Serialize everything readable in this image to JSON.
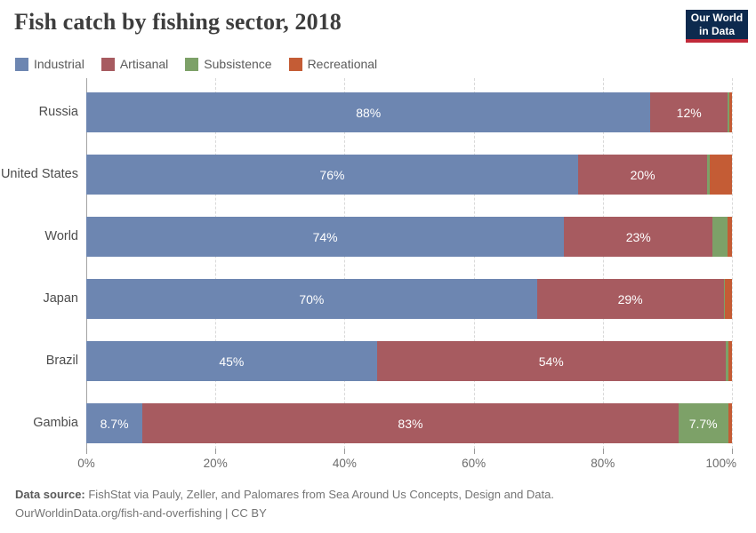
{
  "title": "Fish catch by fishing sector, 2018",
  "logo": {
    "line1": "Our World",
    "line2": "in Data",
    "bg_color": "#0d2a4e",
    "accent_color": "#c12a3a"
  },
  "legend": [
    {
      "label": "Industrial",
      "color": "#6d86b1"
    },
    {
      "label": "Artisanal",
      "color": "#a75b60"
    },
    {
      "label": "Subsistence",
      "color": "#7da168"
    },
    {
      "label": "Recreational",
      "color": "#c45c35"
    }
  ],
  "chart_data": {
    "type": "bar",
    "variant": "horizontal-stacked",
    "title": "Fish catch by fishing sector, 2018",
    "categories": [
      "Russia",
      "United States",
      "World",
      "Japan",
      "Brazil",
      "Gambia"
    ],
    "series": [
      {
        "name": "Industrial",
        "color": "#6d86b1",
        "values": [
          88,
          76,
          74,
          70,
          45,
          8.7
        ],
        "labels": [
          "88%",
          "76%",
          "74%",
          "70%",
          "45%",
          "8.7%"
        ]
      },
      {
        "name": "Artisanal",
        "color": "#a75b60",
        "values": [
          12,
          20,
          23,
          29,
          54,
          83
        ],
        "labels": [
          "12%",
          "20%",
          "23%",
          "29%",
          "54%",
          "83%"
        ]
      },
      {
        "name": "Subsistence",
        "color": "#7da168",
        "values": [
          0.3,
          0.3,
          2.3,
          0.2,
          0.4,
          7.7
        ],
        "labels": [
          "",
          "",
          "",
          "",
          "",
          "7.7%"
        ]
      },
      {
        "name": "Recreational",
        "color": "#c45c35",
        "values": [
          0.4,
          3.5,
          0.7,
          1.1,
          0.6,
          0.6
        ],
        "labels": [
          "",
          "",
          "",
          "",
          "",
          ""
        ]
      }
    ],
    "xticks": [
      "0%",
      "20%",
      "40%",
      "60%",
      "80%",
      "100%"
    ],
    "xlim": [
      0,
      100
    ],
    "grid": "vertical-dashed",
    "legend_position": "top",
    "value_labels": "inside-white"
  },
  "footer": {
    "source_label": "Data source:",
    "source_text": " FishStat via Pauly, Zeller, and Palomares from Sea Around Us Concepts, Design and Data.",
    "link_line": "OurWorldinData.org/fish-and-overfishing | CC BY"
  }
}
